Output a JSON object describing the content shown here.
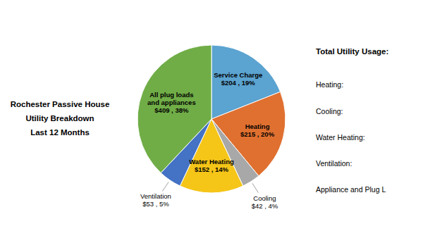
{
  "chart_data": {
    "type": "pie",
    "title": [
      "Rochester Passive House",
      "Utility Breakdown",
      "Last 12 Months"
    ],
    "categories": [
      "Service Charge",
      "Heating",
      "Cooling",
      "Water Heating",
      "Ventilation",
      "All plug loads\nand appliances"
    ],
    "values": [
      19,
      20,
      4,
      14,
      5,
      38
    ],
    "value_labels": [
      "$204 , 19%",
      "$215 , 20%",
      "$42 , 4%",
      "$152 , 14%",
      "$53 , 5%",
      "$409 , 38%"
    ],
    "colors": [
      "#5BA3D0",
      "#E07030",
      "#A8A8A8",
      "#F5C518",
      "#4472C4",
      "#70AD47"
    ],
    "data_labels": true,
    "annotations": [
      "Total Utility Usage:",
      "Heating:",
      "Cooling:",
      "Water Heating:",
      "Ventilation:",
      "Appliance and Plug L"
    ]
  }
}
